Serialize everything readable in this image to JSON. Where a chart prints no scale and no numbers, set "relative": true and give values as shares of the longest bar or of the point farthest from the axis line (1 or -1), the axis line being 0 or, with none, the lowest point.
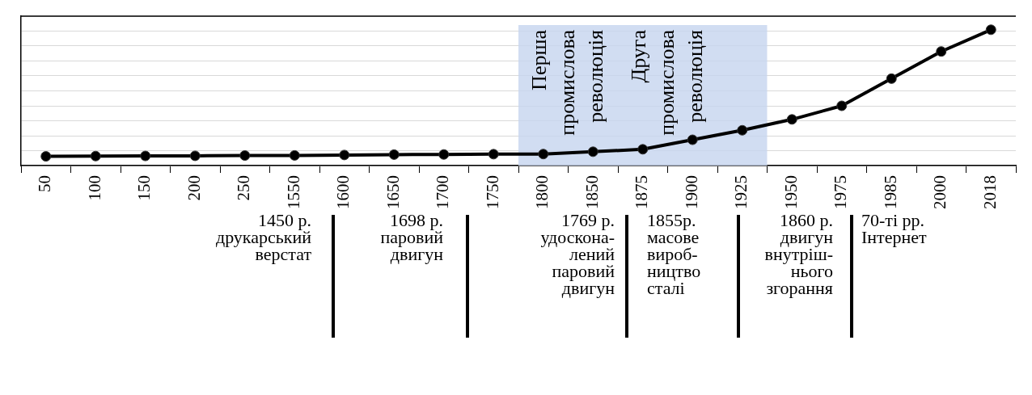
{
  "chart_data": {
    "type": "line",
    "relative": true,
    "grid": "y",
    "marker": "circle",
    "line_style": "solid",
    "categories": [
      "50",
      "100",
      "150",
      "200",
      "250",
      "1550",
      "1600",
      "1650",
      "1700",
      "1750",
      "1800",
      "1850",
      "1875",
      "1900",
      "1925",
      "1950",
      "1975",
      "1985",
      "2000",
      "2018"
    ],
    "series": [
      {
        "color": "#000000",
        "values": [
          0.068,
          0.07,
          0.071,
          0.072,
          0.074,
          0.075,
          0.078,
          0.081,
          0.082,
          0.084,
          0.085,
          0.102,
          0.12,
          0.19,
          0.26,
          0.34,
          0.44,
          0.64,
          0.84,
          1
        ]
      }
    ],
    "bands": [
      {
        "axis": "x",
        "from": "1800",
        "to": "1850",
        "label": "Перша промислова революція",
        "color": "#c6d4ef"
      },
      {
        "axis": "x",
        "from": "1875",
        "to": "1925",
        "label": "Друга промислова революція",
        "color": "#c6d4ef"
      }
    ],
    "annotations": [
      "1450 р.\nдрукарський\nверстат",
      "1698 р.\nпаровий\nдвигун",
      "1769 р.\nудоскона-\nлений\nпаровий\nдвигун",
      "1855р.\nмасове\nвироб-\nництво\nсталі",
      "1860 р.\nдвигун\nвнутріш-\nнього\nзгорання",
      "70-ті рр.\nІнтернет"
    ]
  }
}
